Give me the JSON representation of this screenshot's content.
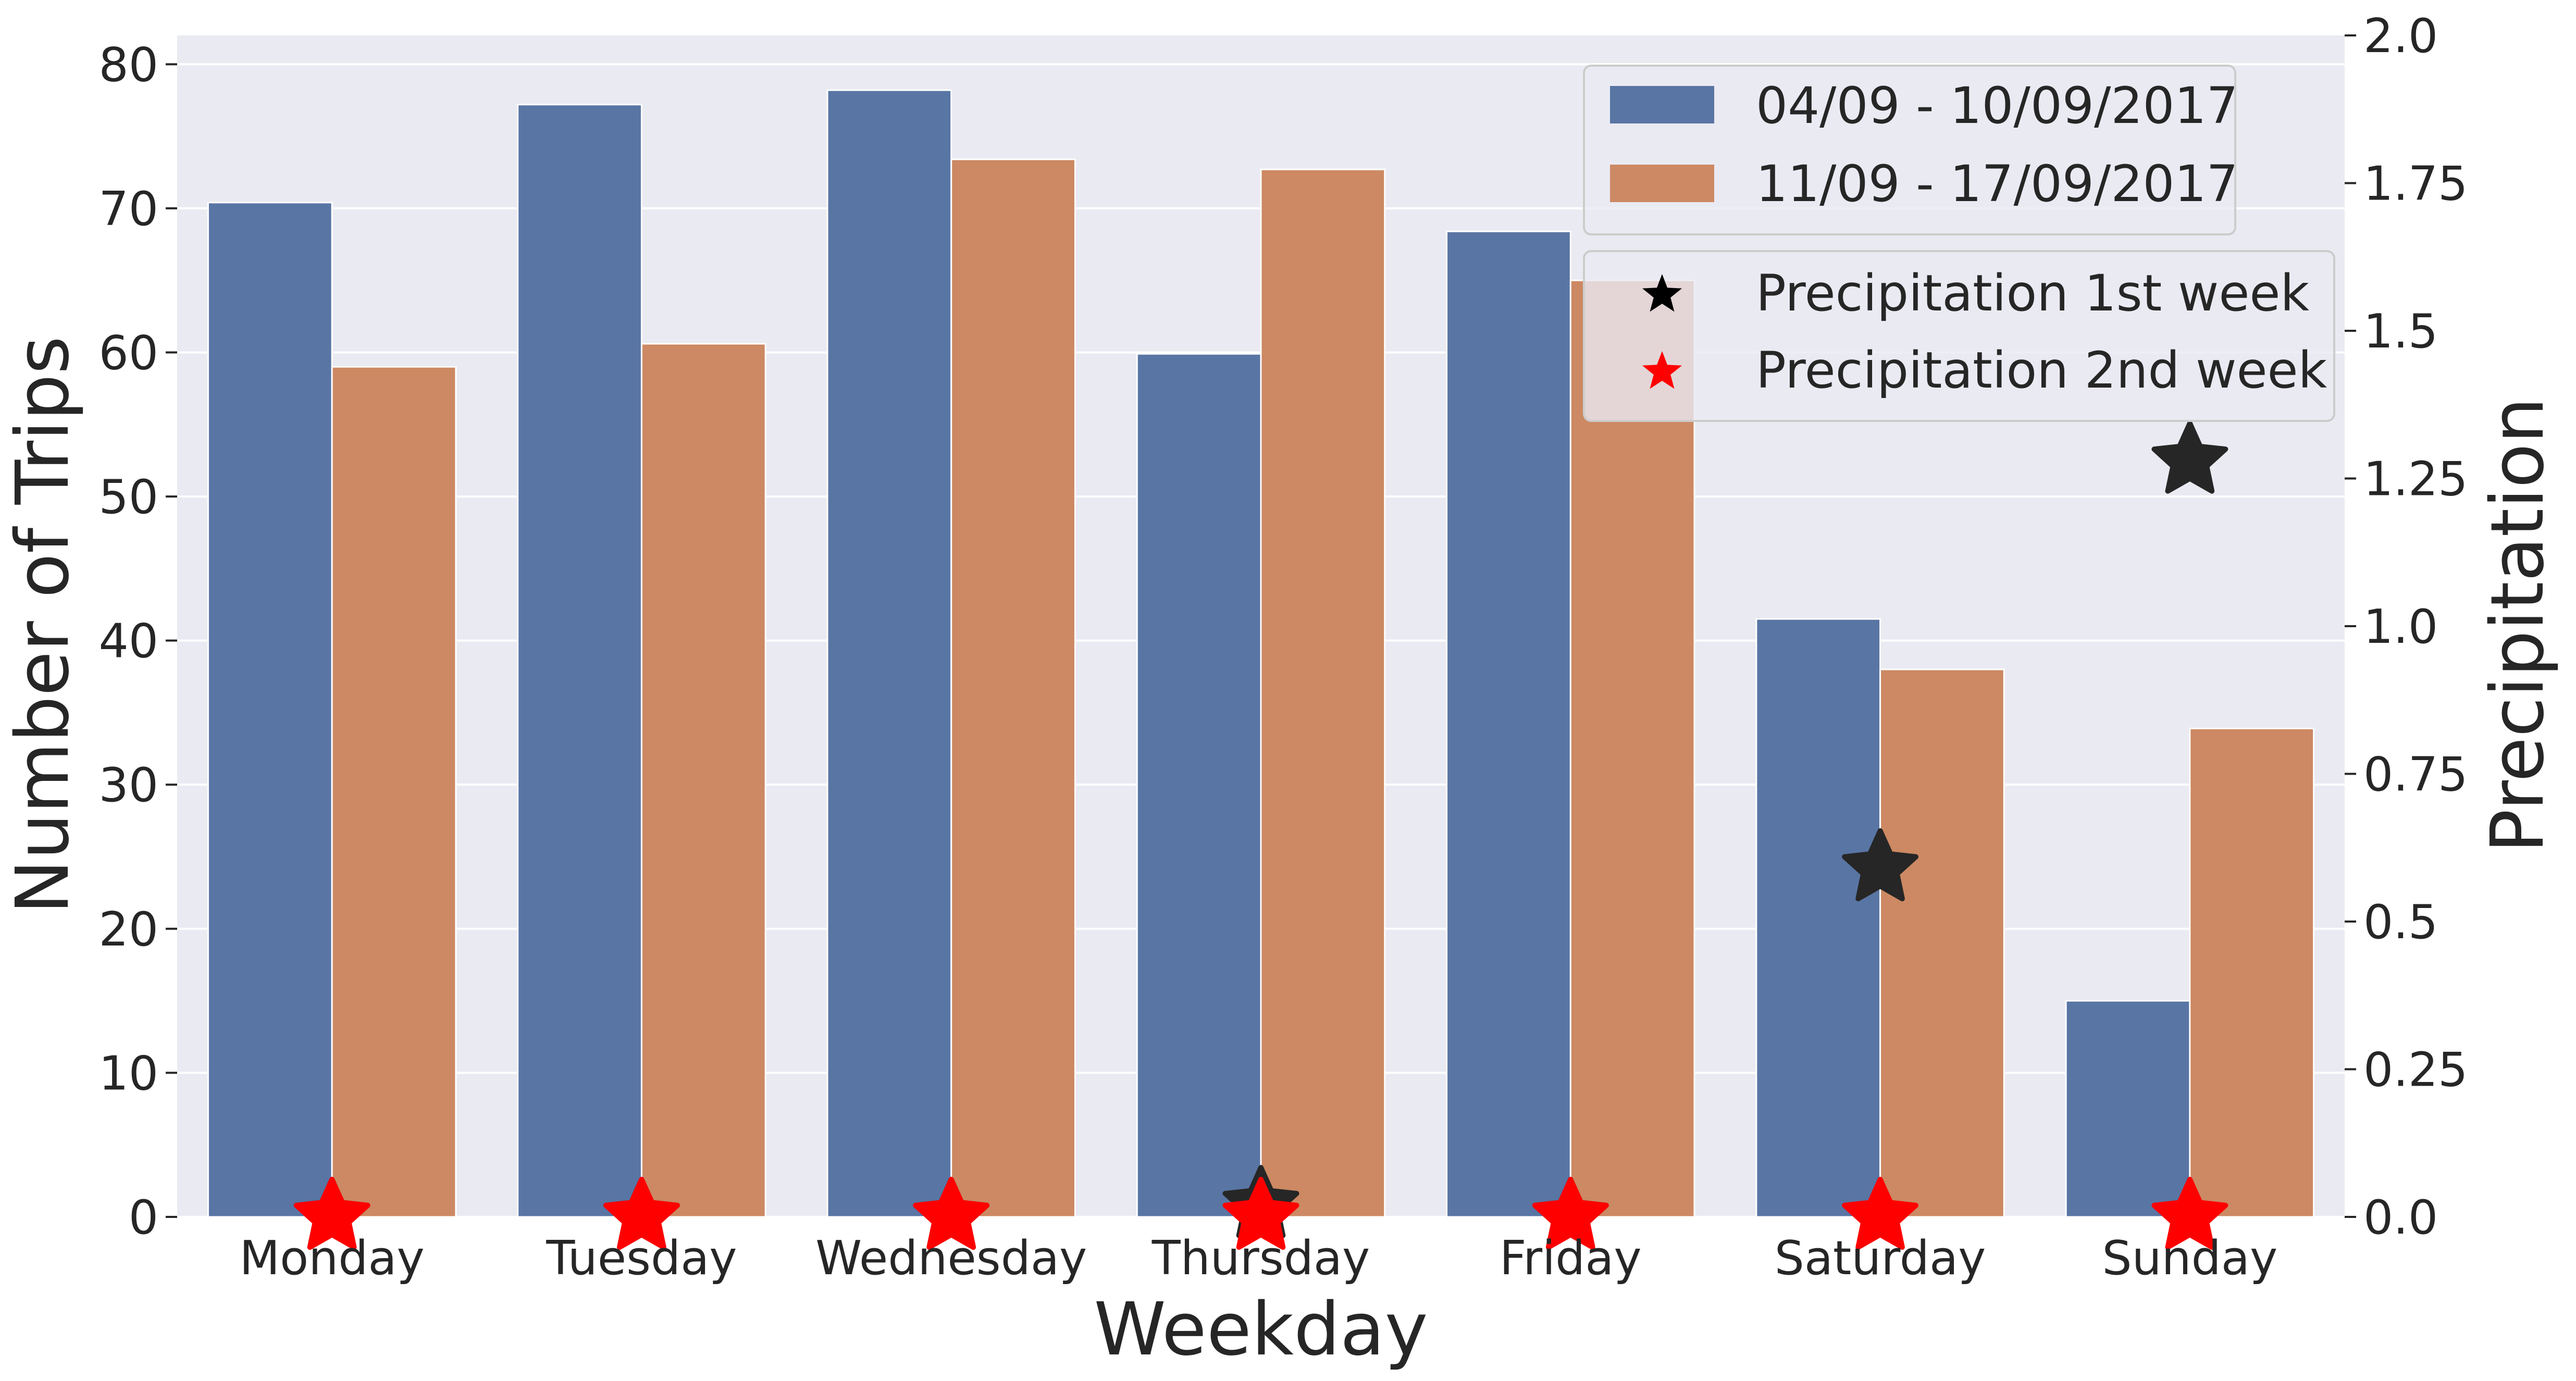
{
  "chart_data": {
    "type": "bar",
    "title": "",
    "xlabel": "Weekday",
    "ylabel": "Number of Trips",
    "y2label": "Precipitation",
    "categories": [
      "Monday",
      "Tuesday",
      "Wednesday",
      "Thursday",
      "Friday",
      "Saturday",
      "Sunday"
    ],
    "ylim": [
      0,
      82
    ],
    "y2lim": [
      0,
      2.0
    ],
    "yticks": [
      "0",
      "10",
      "20",
      "30",
      "40",
      "50",
      "60",
      "70",
      "80"
    ],
    "y2ticks": [
      "0.0",
      "0.25",
      "0.5",
      "0.75",
      "1.0",
      "1.25",
      "1.5",
      "1.75",
      "2.0"
    ],
    "series": [
      {
        "name": "04/09 - 10/09/2017",
        "color": "#5975a4",
        "values": [
          70.4,
          77.2,
          78.2,
          59.9,
          68.4,
          41.5,
          15.0
        ]
      },
      {
        "name": "11/09 - 17/09/2017",
        "color": "#cc8963",
        "values": [
          59.0,
          60.6,
          73.4,
          72.7,
          65.0,
          38.0,
          33.9
        ]
      }
    ],
    "markers": [
      {
        "name": "Precipitation 1st week",
        "color": "#262626",
        "axis": "right",
        "values": [
          0.0,
          0.0,
          0.0,
          0.02,
          0.0,
          0.59,
          1.28
        ]
      },
      {
        "name": "Precipitation 2nd week",
        "color": "#ff0000",
        "axis": "right",
        "values": [
          0.0,
          0.0,
          0.0,
          0.0,
          0.0,
          0.0,
          0.0
        ]
      }
    ],
    "grid": true,
    "legend_placement": "top-right",
    "background": "#eaeaf2"
  }
}
